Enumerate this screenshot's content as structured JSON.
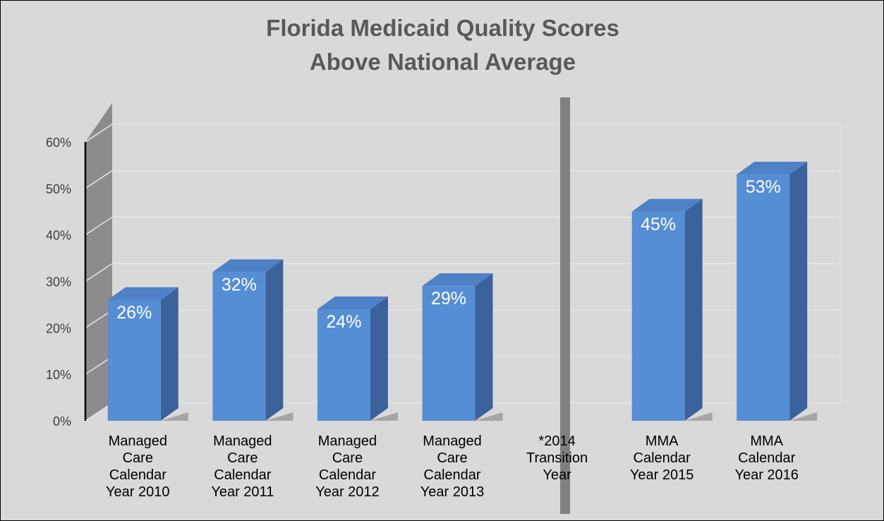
{
  "chart_data": {
    "type": "bar3d",
    "title": [
      "Florida Medicaid Quality Scores",
      "Above National Average"
    ],
    "categories": [
      "Managed Care Calendar Year 2010",
      "Managed Care Calendar Year 2011",
      "Managed Care Calendar Year 2012",
      "Managed Care Calendar Year 2013",
      "*2014 Transition Year",
      "MMA Calendar Year 2015",
      "MMA Calendar Year 2016"
    ],
    "values": [
      26,
      32,
      24,
      29,
      null,
      45,
      53
    ],
    "value_labels": [
      "26%",
      "32%",
      "24%",
      "29%",
      null,
      "45%",
      "53%"
    ],
    "color": "#558ed5",
    "ylim": [
      0,
      60
    ],
    "yticks": [
      {
        "value": 0,
        "label": "0%"
      },
      {
        "value": 10,
        "label": "10%"
      },
      {
        "value": 20,
        "label": "20%"
      },
      {
        "value": 30,
        "label": "30%"
      },
      {
        "value": 40,
        "label": "40%"
      },
      {
        "value": 50,
        "label": "50%"
      },
      {
        "value": 60,
        "label": "60%"
      }
    ],
    "grid": true
  }
}
